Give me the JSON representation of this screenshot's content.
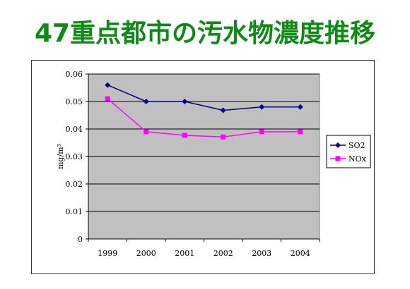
{
  "title": "47重点都市の汚水物濃度推移",
  "colors": {
    "title": "#0e8a16",
    "plot_bg": "#c0c0c0",
    "grid": "#000000",
    "so2": "#000080",
    "nox": "#ff00ff"
  },
  "chart_data": {
    "type": "line",
    "title": "",
    "xlabel": "",
    "ylabel": "mg/m³",
    "ylim": [
      0,
      0.06
    ],
    "yticks": [
      "0.06",
      "0.05",
      "0.04",
      "0.03",
      "0.02",
      "0.01",
      "0"
    ],
    "ytick_values": [
      0.06,
      0.05,
      0.04,
      0.03,
      0.02,
      0.01,
      0
    ],
    "categories": [
      "1999",
      "2000",
      "2001",
      "2002",
      "2003",
      "2004"
    ],
    "grid": true,
    "legend_position": "right",
    "series": [
      {
        "name": "SO2",
        "marker": "diamond",
        "values": [
          0.056,
          0.05,
          0.05,
          0.0468,
          0.048,
          0.048
        ]
      },
      {
        "name": "NOx",
        "marker": "square",
        "values": [
          0.051,
          0.039,
          0.0377,
          0.0371,
          0.039,
          0.039
        ]
      }
    ]
  }
}
